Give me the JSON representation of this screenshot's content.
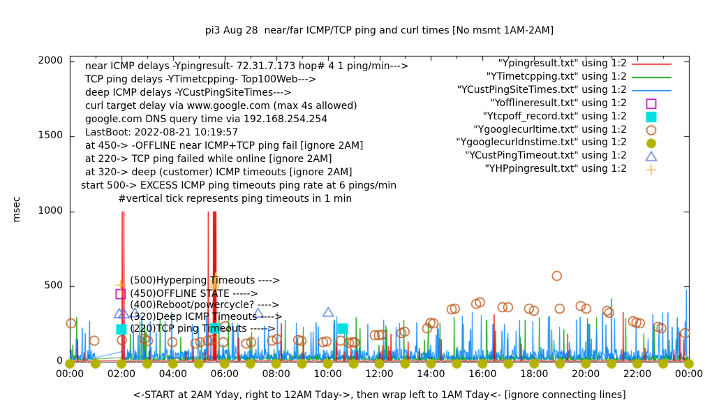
{
  "title": "pi3 Aug 28  near/far ICMP/TCP ping and curl times [No msmt 1AM-2AM]",
  "axes": {
    "ylabel": "msec",
    "xlabel": "<-START at 2AM Yday, right to 12AM Tday->, then wrap left to 1AM Tday<- [ignore connecting lines]",
    "y_ticks": [
      0,
      500,
      1000,
      1500,
      2000
    ],
    "x_tick_labels": [
      "00:00",
      "02:00",
      "04:00",
      "06:00",
      "08:00",
      "10:00",
      "12:00",
      "14:00",
      "16:00",
      "18:00",
      "20:00",
      "22:00",
      "00:00"
    ],
    "x_range_hours": [
      0,
      24
    ],
    "y_range_msec": [
      0,
      2035
    ],
    "grid": "off",
    "border": "box with inward ticks, minor hourly ticks"
  },
  "annotation_block": [
    "near ICMP delays -Ypingresult- 72.31.7.173 hop# 4 1 ping/min--->",
    "TCP ping delays -YTimetcpping- Top100Web--->",
    "deep ICMP delays -YCustPingSiteTimes--->",
    "curl target delay via www.google.com (max 4s allowed)",
    "google.com DNS query time via 192.168.254.254",
    "LastBoot: 2022-08-21 10:19:57",
    "at 450-> -OFFLINE near ICMP+TCP ping fail [ignore 2AM]",
    "at 220-> TCP ping failed while online [ignore 2AM]",
    "at 320-> deep (customer) ICMP timeouts [ignore 2AM]",
    "start 500-> EXCESS ICMP ping timeouts ping rate at 6 pings/min",
    "#vertical tick represents ping timeouts in 1 min"
  ],
  "level_labels": [
    {
      "text": "(500)Hyperping Timeouts ---->",
      "hour": 2.33,
      "msec": 535
    },
    {
      "text": "(450)OFFLINE STATE ----->",
      "hour": 2.33,
      "msec": 448
    },
    {
      "text": "(400)Reboot/powercycle? ---->",
      "hour": 2.33,
      "msec": 370
    },
    {
      "text": "(320)Deep ICMP Timeouts ---->",
      "hour": 2.33,
      "msec": 292
    },
    {
      "text": "(220)TCP ping Timeouts ----->",
      "hour": 2.33,
      "msec": 213
    }
  ],
  "legend": [
    {
      "label": "\"Ypingresult.txt\" using 1:2",
      "swatch": "line",
      "color": "#ee0000"
    },
    {
      "label": "\"YTimetcpping.txt\" using 1:2",
      "swatch": "line",
      "color": "#009e00"
    },
    {
      "label": "\"YCustPingSiteTimes.txt\" using 1:2",
      "swatch": "line",
      "color": "#0080ff"
    },
    {
      "label": "\"Yofflineresult.txt\" using 1:2",
      "swatch": "open-square",
      "color": "#bb00bb"
    },
    {
      "label": "\"Ytcpoff_record.txt\" using 1:2",
      "swatch": "filled-square",
      "color": "#00e0e0"
    },
    {
      "label": "\"Ygooglecurltime.txt\" using 1:2",
      "swatch": "open-circle",
      "color": "#bf5a1e"
    },
    {
      "label": "\"Ygooglecurldnstime.txt\" using 1:2",
      "swatch": "filled-circle",
      "color": "#b3b300"
    },
    {
      "label": "\"YCustPingTimeout.txt\" using 1:2",
      "swatch": "open-triangle",
      "color": "#4a6fd4"
    },
    {
      "label": "\"YHPpingresult.txt\" using 1:2",
      "swatch": "plus",
      "color": "#ffb340"
    }
  ],
  "chart_data": {
    "type": "line",
    "x_unit": "hours_since_2AM_yesterday_wrapped",
    "no_measurement_gap_hours": [
      1,
      2
    ],
    "series": [
      {
        "name": "Ypingresult near ICMP",
        "style": "line",
        "color": "#ee0000",
        "baseline_msec": [
          3,
          9
        ],
        "random_spike_prob": 0.006,
        "random_spike_range": [
          60,
          150
        ],
        "spikes": [
          [
            0.3,
            148
          ],
          [
            0.55,
            62
          ],
          [
            2.03,
            1000
          ],
          [
            2.1,
            1000
          ],
          [
            3.1,
            85
          ],
          [
            4.5,
            70
          ],
          [
            5.36,
            1000
          ],
          [
            5.57,
            1000
          ],
          [
            5.6,
            1000
          ],
          [
            5.63,
            1000
          ],
          [
            5.67,
            1000
          ],
          [
            6.55,
            160
          ],
          [
            8.2,
            255
          ],
          [
            9.05,
            148
          ],
          [
            10.9,
            92
          ],
          [
            12.45,
            185
          ],
          [
            13.55,
            92
          ],
          [
            14.4,
            148
          ],
          [
            16.45,
            315
          ],
          [
            17.5,
            120
          ],
          [
            19.3,
            185
          ],
          [
            21.45,
            330
          ],
          [
            22.3,
            92
          ],
          [
            23.65,
            200
          ],
          [
            23.8,
            150
          ]
        ]
      },
      {
        "name": "YTimetcpping TCP ping",
        "style": "line",
        "color": "#009e00",
        "baseline_msec": [
          8,
          48
        ],
        "random_spike_prob": 0.022,
        "random_spike_range": [
          80,
          300
        ],
        "spikes": [
          [
            0.12,
            112
          ],
          [
            2.35,
            185
          ],
          [
            2.95,
            200
          ],
          [
            3.5,
            278
          ],
          [
            4.3,
            162
          ],
          [
            5.1,
            150
          ],
          [
            5.62,
            915
          ],
          [
            6.15,
            278
          ],
          [
            7.05,
            200
          ],
          [
            8.35,
            278
          ],
          [
            9.05,
            232
          ],
          [
            10.25,
            278
          ],
          [
            11.1,
            295
          ],
          [
            12.25,
            241
          ],
          [
            12.95,
            278
          ],
          [
            13.9,
            262
          ],
          [
            14.9,
            295
          ],
          [
            15.25,
            250
          ],
          [
            16.15,
            278
          ],
          [
            17.65,
            278
          ],
          [
            18.2,
            295
          ],
          [
            19.15,
            215
          ],
          [
            20.15,
            252
          ],
          [
            21.55,
            290
          ],
          [
            22.65,
            241
          ],
          [
            23.55,
            295
          ]
        ]
      },
      {
        "name": "YCustPingSiteTimes deep ICMP",
        "style": "line",
        "color": "#0080ff",
        "baseline_msec": [
          14,
          85
        ],
        "random_spike_prob": 0.055,
        "random_spike_range": [
          90,
          330
        ],
        "spikes": [
          [
            0.25,
            150
          ],
          [
            0.6,
            190
          ],
          [
            2.65,
            180
          ],
          [
            3.35,
            200
          ],
          [
            3.95,
            330
          ],
          [
            4.75,
            250
          ],
          [
            6.35,
            200
          ],
          [
            7.55,
            240
          ],
          [
            8.05,
            330
          ],
          [
            9.55,
            262
          ],
          [
            10.65,
            232
          ],
          [
            11.55,
            250
          ],
          [
            12.65,
            232
          ],
          [
            13.45,
            262
          ],
          [
            14.25,
            240
          ],
          [
            15.6,
            330
          ],
          [
            16.85,
            250
          ],
          [
            17.95,
            270
          ],
          [
            18.55,
            300
          ],
          [
            19.65,
            280
          ],
          [
            20.65,
            325
          ],
          [
            21.0,
            420
          ],
          [
            21.95,
            250
          ],
          [
            22.85,
            262
          ],
          [
            23.35,
            232
          ],
          [
            23.9,
            480
          ]
        ]
      },
      {
        "name": "Yofflineresult",
        "style": "open-square",
        "color": "#bb00bb",
        "points": [
          [
            1.97,
            450
          ]
        ]
      },
      {
        "name": "Ytcpoff_record",
        "style": "filled-square",
        "color": "#00e0e0",
        "points": [
          [
            2.0,
            215
          ],
          [
            5.63,
            222
          ],
          [
            10.58,
            220
          ]
        ]
      },
      {
        "name": "Ygooglecurltime",
        "style": "open-circle",
        "color": "#bf5a1e",
        "points": [
          [
            0.05,
            255
          ],
          [
            0.95,
            140
          ],
          [
            2.02,
            144
          ],
          [
            2.9,
            153
          ],
          [
            3.03,
            139
          ],
          [
            3.98,
            130
          ],
          [
            4.87,
            121
          ],
          [
            5.06,
            130
          ],
          [
            5.35,
            139
          ],
          [
            5.5,
            144
          ],
          [
            5.95,
            130
          ],
          [
            6.03,
            237
          ],
          [
            6.84,
            121
          ],
          [
            7.03,
            130
          ],
          [
            7.84,
            140
          ],
          [
            8.03,
            150
          ],
          [
            8.85,
            144
          ],
          [
            8.98,
            139
          ],
          [
            9.82,
            130
          ],
          [
            9.95,
            135
          ],
          [
            10.5,
            140
          ],
          [
            10.82,
            125
          ],
          [
            10.96,
            130
          ],
          [
            11.04,
            128
          ],
          [
            11.82,
            176
          ],
          [
            11.98,
            176
          ],
          [
            12.1,
            180
          ],
          [
            12.85,
            190
          ],
          [
            12.98,
            200
          ],
          [
            13.85,
            222
          ],
          [
            13.98,
            258
          ],
          [
            14.1,
            255
          ],
          [
            14.8,
            348
          ],
          [
            14.93,
            353
          ],
          [
            15.75,
            385
          ],
          [
            15.9,
            395
          ],
          [
            16.77,
            362
          ],
          [
            16.99,
            362
          ],
          [
            17.8,
            353
          ],
          [
            17.99,
            339
          ],
          [
            18.88,
            571
          ],
          [
            18.99,
            353
          ],
          [
            19.8,
            371
          ],
          [
            20.02,
            353
          ],
          [
            20.83,
            339
          ],
          [
            20.91,
            325
          ],
          [
            21.83,
            269
          ],
          [
            21.96,
            260
          ],
          [
            22.1,
            255
          ],
          [
            22.8,
            232
          ],
          [
            22.93,
            223
          ],
          [
            23.85,
            190
          ]
        ]
      },
      {
        "name": "Ygooglecurldnstime",
        "style": "filled-circle",
        "color": "#b3b300",
        "points": [
          [
            0,
            5
          ],
          [
            1,
            5
          ],
          [
            2,
            5
          ],
          [
            3,
            5
          ],
          [
            4,
            5
          ],
          [
            5,
            5
          ],
          [
            6,
            5
          ],
          [
            7,
            5
          ],
          [
            8,
            5
          ],
          [
            9,
            5
          ],
          [
            10,
            5
          ],
          [
            11,
            5
          ],
          [
            12,
            5
          ],
          [
            13,
            5
          ],
          [
            14,
            5
          ],
          [
            15,
            5
          ],
          [
            16,
            5
          ],
          [
            17,
            5
          ],
          [
            18,
            5
          ],
          [
            19,
            5
          ],
          [
            20,
            5
          ],
          [
            21,
            5
          ],
          [
            22,
            5
          ],
          [
            23,
            5
          ],
          [
            24,
            5
          ]
        ]
      },
      {
        "name": "YCustPingTimeout",
        "style": "open-triangle",
        "color": "#4a6fd4",
        "points": [
          [
            1.92,
            320
          ],
          [
            2.1,
            318
          ],
          [
            2.52,
            325
          ],
          [
            7.3,
            322
          ],
          [
            10.02,
            328
          ]
        ]
      },
      {
        "name": "YHPpingresult",
        "style": "plus",
        "color": "#ffb340",
        "points": [
          [
            1.97,
            510
          ],
          [
            5.58,
            480
          ],
          [
            5.6,
            495
          ],
          [
            5.61,
            510
          ],
          [
            5.62,
            524
          ],
          [
            5.63,
            538
          ],
          [
            5.65,
            552
          ],
          [
            5.66,
            565
          ]
        ]
      }
    ]
  }
}
